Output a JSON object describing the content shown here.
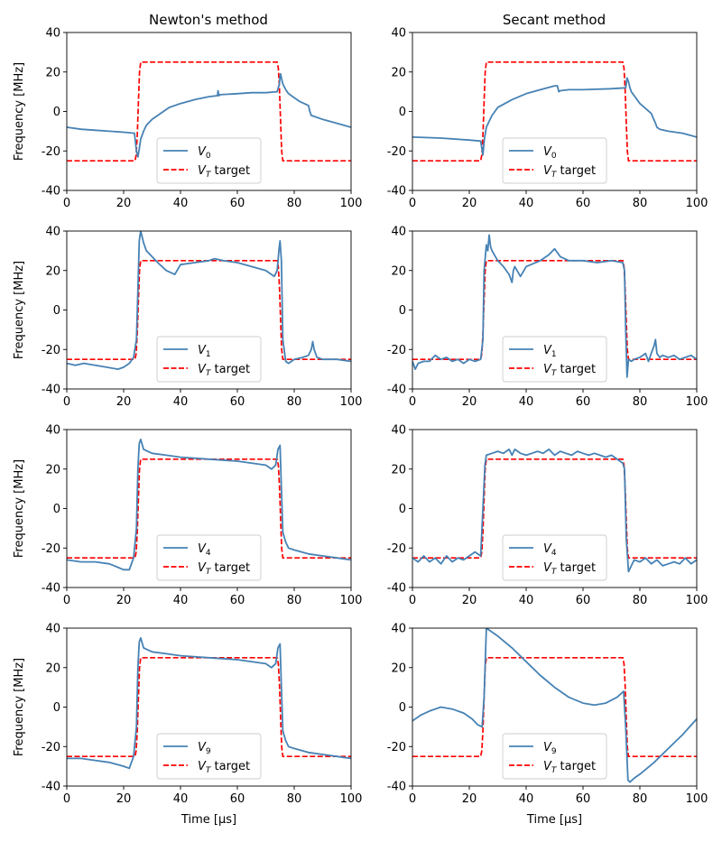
{
  "figure": {
    "col_titles": [
      "Newton's method",
      "Secant method"
    ],
    "xlabel": "Time [μs]",
    "ylabel": "Frequency [MHz]"
  },
  "colors": {
    "measured": "#4682b4",
    "target": "#ff0000"
  },
  "chart_data": [
    {
      "type": "line",
      "title": "Newton's method",
      "row": 0,
      "col": 0,
      "series_label": "V",
      "series_sub": "0",
      "target_label": "target",
      "target_sub": "T",
      "x_ticks": [
        0,
        20,
        40,
        60,
        80,
        100
      ],
      "y_ticks": [
        -40,
        -20,
        0,
        20,
        40
      ],
      "xlim": [
        0,
        100
      ],
      "ylim": [
        -40,
        40
      ],
      "series": {
        "name": "V_0",
        "x": [
          0,
          5,
          10,
          15,
          20,
          23.8,
          24.5,
          25,
          25.5,
          26,
          27,
          28,
          30,
          32,
          34,
          36,
          40,
          45,
          50,
          53,
          53.2,
          53.5,
          54,
          60,
          65,
          70,
          74,
          74.8,
          75,
          75.2,
          75.5,
          76,
          77,
          78,
          80,
          82,
          85,
          85.5,
          86,
          90,
          95,
          100
        ],
        "y": [
          -8,
          -9,
          -9.5,
          -10,
          -10.5,
          -11,
          -20,
          -23,
          -19,
          -14,
          -10,
          -7,
          -4,
          -2,
          0,
          2,
          4,
          6,
          7.5,
          8,
          10.5,
          8,
          8.5,
          9,
          9.5,
          9.5,
          10,
          14,
          18,
          19,
          17,
          14,
          11,
          9,
          7,
          5,
          3,
          0,
          -2,
          -4,
          -6,
          -8
        ]
      },
      "target": {
        "name": "V_T target",
        "x": [
          0,
          24,
          24.4,
          24.8,
          25.2,
          25.6,
          26,
          74,
          74.4,
          74.8,
          75.2,
          75.6,
          76,
          100
        ],
        "y": [
          -25,
          -25,
          -22,
          -12,
          5,
          20,
          25,
          25,
          22,
          12,
          -5,
          -20,
          -25,
          -25
        ]
      }
    },
    {
      "type": "line",
      "title": "Secant method",
      "row": 0,
      "col": 1,
      "series_label": "V",
      "series_sub": "0",
      "target_label": "target",
      "target_sub": "T",
      "x_ticks": [
        0,
        20,
        40,
        60,
        80,
        100
      ],
      "y_ticks": [
        -40,
        -20,
        0,
        20,
        40
      ],
      "xlim": [
        0,
        100
      ],
      "ylim": [
        -40,
        40
      ],
      "series": {
        "name": "V_0",
        "x": [
          0,
          10,
          20,
          24,
          24.8,
          25.3,
          26,
          27,
          28,
          30,
          35,
          40,
          45,
          50,
          51,
          51.5,
          52,
          55,
          60,
          70,
          75,
          75.5,
          76,
          76.5,
          77,
          80,
          84,
          85.5,
          86,
          87,
          90,
          95,
          100
        ],
        "y": [
          -13,
          -13.5,
          -14.5,
          -15,
          -22,
          -14,
          -8,
          -5,
          -2,
          2,
          6,
          9,
          11,
          13,
          13,
          10,
          10.5,
          11,
          11,
          11.5,
          12,
          17,
          15,
          12,
          10,
          4,
          -1,
          -6,
          -8,
          -9,
          -10,
          -11,
          -13
        ]
      },
      "target": {
        "name": "V_T target",
        "x": [
          0,
          24,
          24.4,
          24.8,
          25.2,
          25.6,
          26,
          74,
          74.4,
          74.8,
          75.2,
          75.6,
          76,
          100
        ],
        "y": [
          -25,
          -25,
          -22,
          -12,
          5,
          20,
          25,
          25,
          22,
          12,
          -5,
          -20,
          -25,
          -25
        ]
      }
    },
    {
      "type": "line",
      "title": "",
      "row": 1,
      "col": 0,
      "series_label": "V",
      "series_sub": "1",
      "target_label": "target",
      "target_sub": "T",
      "x_ticks": [
        0,
        20,
        40,
        60,
        80,
        100
      ],
      "y_ticks": [
        -40,
        -20,
        0,
        20,
        40
      ],
      "xlim": [
        0,
        100
      ],
      "ylim": [
        -40,
        40
      ],
      "series": {
        "name": "V_1",
        "x": [
          0,
          3,
          6,
          10,
          14,
          18,
          20,
          22,
          23.5,
          24.5,
          25,
          25.5,
          26,
          27,
          28,
          30,
          32,
          35,
          38,
          40,
          45,
          50,
          52,
          55,
          60,
          65,
          70,
          73,
          74,
          74.6,
          75,
          75.5,
          76,
          77,
          78,
          80,
          83,
          85,
          86,
          86.5,
          87,
          88,
          90,
          95,
          100
        ],
        "y": [
          -27,
          -28,
          -27,
          -28,
          -29,
          -30,
          -29,
          -27,
          -24,
          -15,
          10,
          35,
          40,
          34,
          30,
          27,
          24,
          20,
          18,
          23,
          24,
          25,
          26,
          25,
          24,
          22,
          20,
          17,
          20,
          30,
          35,
          25,
          -15,
          -26,
          -27,
          -25,
          -24,
          -23,
          -20,
          -16,
          -20,
          -24,
          -25,
          -25,
          -26
        ]
      },
      "target": {
        "name": "V_T target",
        "x": [
          0,
          24,
          24.4,
          24.8,
          25.2,
          25.6,
          26,
          74,
          74.4,
          74.8,
          75.2,
          75.6,
          76,
          100
        ],
        "y": [
          -25,
          -25,
          -22,
          -12,
          5,
          20,
          25,
          25,
          22,
          12,
          -5,
          -20,
          -25,
          -25
        ]
      }
    },
    {
      "type": "line",
      "title": "",
      "row": 1,
      "col": 1,
      "series_label": "V",
      "series_sub": "1",
      "target_label": "target",
      "target_sub": "T",
      "x_ticks": [
        0,
        20,
        40,
        60,
        80,
        100
      ],
      "y_ticks": [
        -40,
        -20,
        0,
        20,
        40
      ],
      "xlim": [
        0,
        100
      ],
      "ylim": [
        -40,
        40
      ],
      "series": {
        "name": "V_1",
        "x": [
          0,
          1,
          2,
          4,
          6,
          8,
          10,
          12,
          14,
          16,
          18,
          20,
          22,
          24,
          24.8,
          25.2,
          26,
          26.5,
          27,
          27.5,
          28,
          30,
          32,
          34,
          35,
          35.5,
          36,
          38,
          40,
          45,
          48,
          50,
          52,
          55,
          60,
          65,
          70,
          74,
          74.6,
          75,
          75.5,
          76,
          77,
          78,
          80,
          82,
          83,
          84,
          85,
          85.5,
          86,
          87,
          88,
          90,
          92,
          94,
          96,
          98,
          100
        ],
        "y": [
          -26,
          -30,
          -27,
          -26,
          -26,
          -23,
          -25,
          -24,
          -26,
          -25,
          -27,
          -25,
          -26,
          -25,
          -15,
          20,
          33,
          30,
          38,
          32,
          30,
          25,
          22,
          18,
          14,
          20,
          22,
          17,
          22,
          25,
          28,
          31,
          27,
          25,
          25,
          24,
          25,
          24,
          20,
          -10,
          -34,
          -25,
          -26,
          -25,
          -24,
          -22,
          -26,
          -22,
          -18,
          -15,
          -22,
          -24,
          -23,
          -24,
          -23,
          -25,
          -24,
          -23,
          -25
        ]
      },
      "target": {
        "name": "V_T target",
        "x": [
          0,
          24,
          24.4,
          24.8,
          25.2,
          25.6,
          26,
          74,
          74.4,
          74.8,
          75.2,
          75.6,
          76,
          100
        ],
        "y": [
          -25,
          -25,
          -22,
          -12,
          5,
          20,
          25,
          25,
          22,
          12,
          -5,
          -20,
          -25,
          -25
        ]
      }
    },
    {
      "type": "line",
      "title": "",
      "row": 2,
      "col": 0,
      "series_label": "V",
      "series_sub": "4",
      "target_label": "target",
      "target_sub": "T",
      "x_ticks": [
        0,
        20,
        40,
        60,
        80,
        100
      ],
      "y_ticks": [
        -40,
        -20,
        0,
        20,
        40
      ],
      "xlim": [
        0,
        100
      ],
      "ylim": [
        -40,
        40
      ],
      "series": {
        "name": "V_4",
        "x": [
          0,
          5,
          10,
          15,
          20,
          22,
          23.5,
          24.5,
          25,
          25.5,
          26,
          27,
          30,
          35,
          40,
          50,
          60,
          70,
          72,
          73.5,
          74.3,
          75,
          75.5,
          76,
          77,
          78,
          80,
          85,
          90,
          95,
          100
        ],
        "y": [
          -26,
          -27,
          -27,
          -28,
          -31,
          -31,
          -25,
          -10,
          20,
          33,
          35,
          30,
          28,
          27,
          26,
          25,
          24,
          22,
          20,
          22,
          30,
          32,
          10,
          -12,
          -17,
          -20,
          -21,
          -23,
          -24,
          -25,
          -26
        ]
      },
      "target": {
        "name": "V_T target",
        "x": [
          0,
          24,
          24.4,
          24.8,
          25.2,
          25.6,
          26,
          74,
          74.4,
          74.8,
          75.2,
          75.6,
          76,
          100
        ],
        "y": [
          -25,
          -25,
          -22,
          -12,
          5,
          20,
          25,
          25,
          22,
          12,
          -5,
          -20,
          -25,
          -25
        ]
      }
    },
    {
      "type": "line",
      "title": "",
      "row": 2,
      "col": 1,
      "series_label": "V",
      "series_sub": "4",
      "target_label": "target",
      "target_sub": "T",
      "x_ticks": [
        0,
        20,
        40,
        60,
        80,
        100
      ],
      "y_ticks": [
        -40,
        -20,
        0,
        20,
        40
      ],
      "xlim": [
        0,
        100
      ],
      "ylim": [
        -40,
        40
      ],
      "series": {
        "name": "V_4",
        "x": [
          0,
          2,
          4,
          6,
          8,
          10,
          12,
          14,
          16,
          18,
          20,
          22,
          24,
          24.8,
          25.5,
          26,
          28,
          30,
          32,
          34,
          35,
          36,
          38,
          40,
          42,
          44,
          46,
          48,
          50,
          52,
          54,
          56,
          58,
          60,
          62,
          64,
          66,
          68,
          70,
          72,
          74,
          74.6,
          75.2,
          76,
          78,
          80,
          82,
          84,
          86,
          88,
          90,
          92,
          94,
          96,
          98,
          100
        ],
        "y": [
          -25,
          -27,
          -24,
          -27,
          -25,
          -28,
          -24,
          -27,
          -25,
          -26,
          -24,
          -22,
          -24,
          0,
          22,
          27,
          28,
          29,
          28,
          30,
          27,
          30,
          28,
          27,
          28,
          29,
          28,
          30,
          27,
          29,
          28,
          27,
          29,
          28,
          27,
          28,
          27,
          26,
          27,
          25,
          23,
          20,
          -15,
          -32,
          -26,
          -27,
          -25,
          -28,
          -26,
          -29,
          -28,
          -27,
          -28,
          -25,
          -28,
          -26
        ]
      },
      "target": {
        "name": "V_T target",
        "x": [
          0,
          24,
          24.4,
          24.8,
          25.2,
          25.6,
          26,
          74,
          74.4,
          74.8,
          75.2,
          75.6,
          76,
          100
        ],
        "y": [
          -25,
          -25,
          -22,
          -12,
          5,
          20,
          25,
          25,
          22,
          12,
          -5,
          -20,
          -25,
          -25
        ]
      }
    },
    {
      "type": "line",
      "title": "",
      "row": 3,
      "col": 0,
      "series_label": "V",
      "series_sub": "9",
      "target_label": "target",
      "target_sub": "T",
      "x_ticks": [
        0,
        20,
        40,
        60,
        80,
        100
      ],
      "y_ticks": [
        -40,
        -20,
        0,
        20,
        40
      ],
      "xlim": [
        0,
        100
      ],
      "ylim": [
        -40,
        40
      ],
      "series": {
        "name": "V_9",
        "x": [
          0,
          5,
          10,
          15,
          20,
          22,
          23.5,
          24.5,
          25,
          25.5,
          26,
          27,
          30,
          35,
          40,
          50,
          60,
          70,
          72,
          73.5,
          74.3,
          75,
          75.5,
          76,
          77,
          78,
          80,
          85,
          90,
          95,
          100
        ],
        "y": [
          -26,
          -26,
          -27,
          -28,
          -30,
          -31,
          -25,
          -10,
          20,
          33,
          35,
          30,
          28,
          27,
          26,
          25,
          24,
          22,
          20,
          22,
          30,
          32,
          10,
          -12,
          -17,
          -20,
          -21,
          -23,
          -24,
          -25,
          -26
        ]
      },
      "target": {
        "name": "V_T target",
        "x": [
          0,
          24,
          24.4,
          24.8,
          25.2,
          25.6,
          26,
          74,
          74.4,
          74.8,
          75.2,
          75.6,
          76,
          100
        ],
        "y": [
          -25,
          -25,
          -22,
          -12,
          5,
          20,
          25,
          25,
          22,
          12,
          -5,
          -20,
          -25,
          -25
        ]
      }
    },
    {
      "type": "line",
      "title": "",
      "row": 3,
      "col": 1,
      "series_label": "V",
      "series_sub": "9",
      "target_label": "target",
      "target_sub": "T",
      "x_ticks": [
        0,
        20,
        40,
        60,
        80,
        100
      ],
      "y_ticks": [
        -40,
        -20,
        0,
        20,
        40
      ],
      "xlim": [
        0,
        100
      ],
      "ylim": [
        -40,
        40
      ],
      "series": {
        "name": "V_9",
        "x": [
          0,
          3,
          6,
          10,
          14,
          18,
          21,
          23,
          24.5,
          25.2,
          26,
          28,
          30,
          35,
          40,
          45,
          50,
          55,
          60,
          64,
          68,
          72,
          74.3,
          75,
          75.8,
          76.5,
          78,
          80,
          85,
          90,
          95,
          100
        ],
        "y": [
          -7,
          -4,
          -2,
          0,
          -1,
          -3,
          -6,
          -9,
          -10,
          5,
          40,
          38,
          36,
          30,
          23,
          16,
          10,
          5,
          2,
          1,
          2,
          5,
          8,
          -10,
          -37,
          -38,
          -36,
          -34,
          -28,
          -21,
          -14,
          -6
        ]
      },
      "target": {
        "name": "V_T target",
        "x": [
          0,
          24,
          24.4,
          24.8,
          25.2,
          25.6,
          26,
          74,
          74.4,
          74.8,
          75.2,
          75.6,
          76,
          100
        ],
        "y": [
          -25,
          -25,
          -22,
          -12,
          5,
          20,
          25,
          25,
          22,
          12,
          -5,
          -20,
          -25,
          -25
        ]
      }
    }
  ]
}
